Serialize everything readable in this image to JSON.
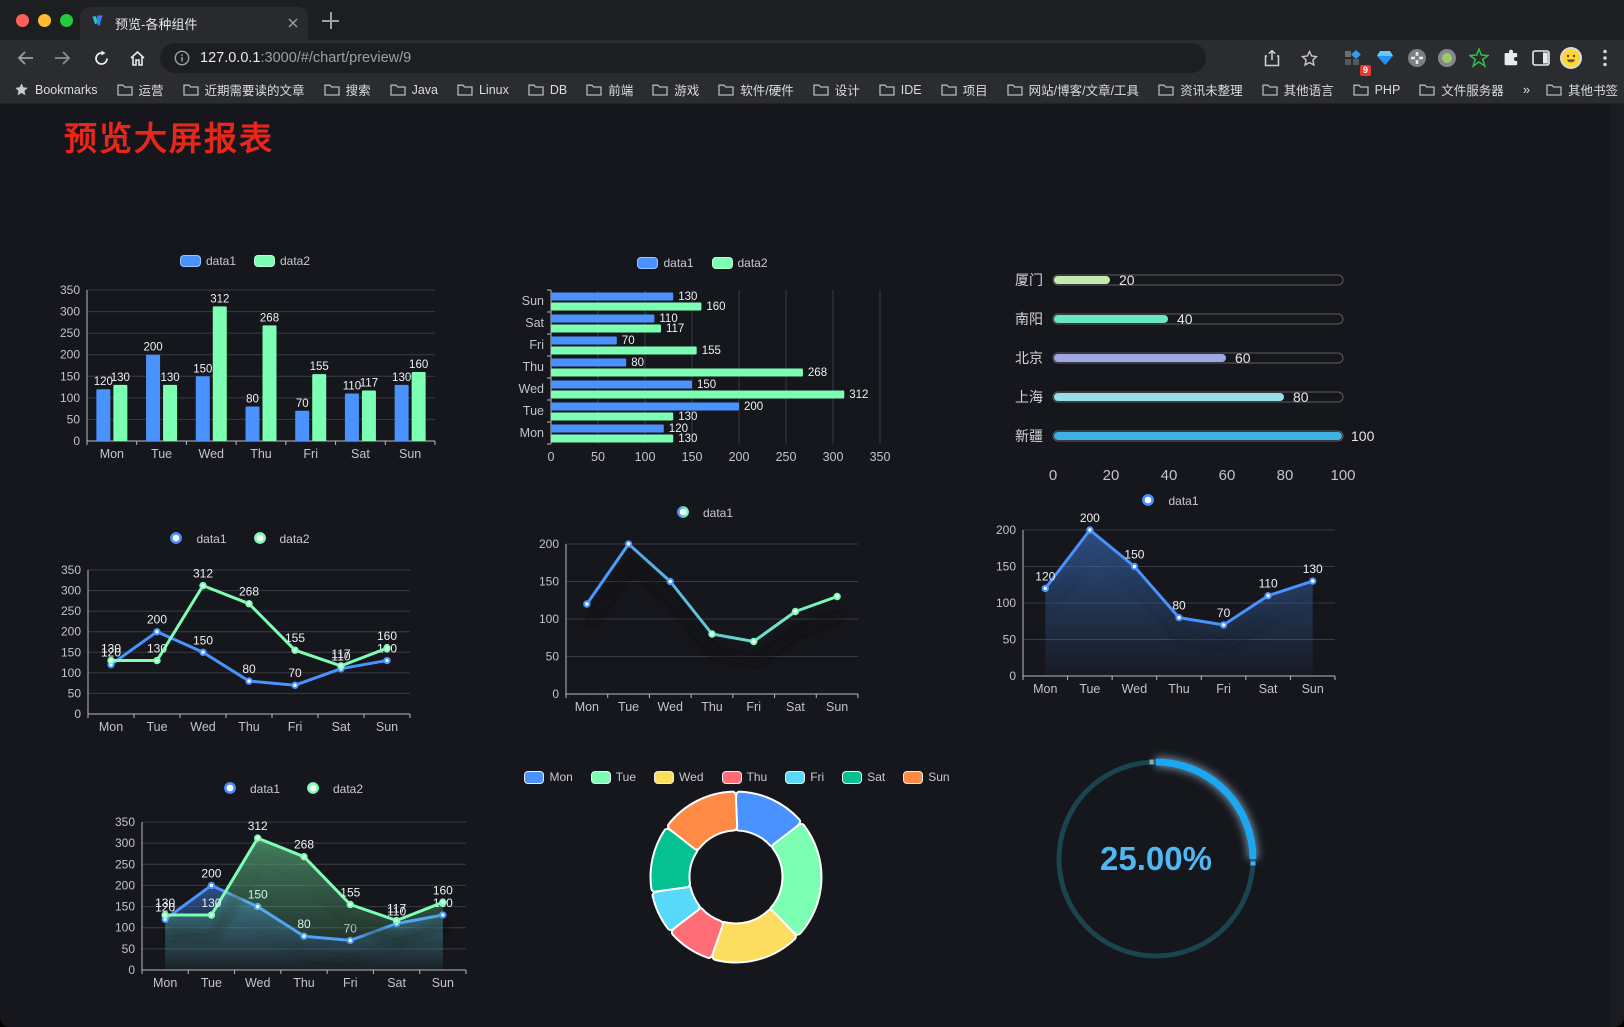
{
  "browser": {
    "tab_title": "预览-各种组件",
    "url_host": "127.0.0.1",
    "url_rest": ":3000/#/chart/preview/9",
    "bookmarks_label": "Bookmarks",
    "bookmarks": [
      "运营",
      "近期需要读的文章",
      "搜索",
      "Java",
      "Linux",
      "DB",
      "前端",
      "游戏",
      "软件/硬件",
      "设计",
      "IDE",
      "项目",
      "网站/博客/文章/工具",
      "资讯未整理",
      "其他语言",
      "PHP",
      "文件服务器"
    ],
    "bookmarks_overflow": "»",
    "other_bookmarks": "其他书签",
    "extension_badge": "9"
  },
  "page": {
    "title": "预览大屏报表",
    "title_color": "#e8261a"
  },
  "theme": {
    "axis_text": "#c2c3cb",
    "grid_line": "#3a3b45",
    "axis_line": "#b8b9c3",
    "label_text": "#eef0f4",
    "legend_text": "#c8c9d0"
  },
  "chart_data": [
    {
      "id": "bar-grouped-vertical",
      "type": "bar",
      "categories": [
        "Mon",
        "Tue",
        "Wed",
        "Thu",
        "Fri",
        "Sat",
        "Sun"
      ],
      "series": [
        {
          "name": "data1",
          "color": "#4992ff",
          "values": [
            120,
            200,
            150,
            80,
            70,
            110,
            130
          ]
        },
        {
          "name": "data2",
          "color": "#7cffb2",
          "values": [
            130,
            130,
            312,
            268,
            155,
            117,
            160
          ]
        }
      ],
      "ylim": [
        0,
        350
      ],
      "ytick_step": 50,
      "legend_position": "top",
      "grid": true,
      "labels": true
    },
    {
      "id": "bar-grouped-horizontal",
      "type": "bar",
      "orientation": "horizontal",
      "categories_top_to_bottom": [
        "Sun",
        "Sat",
        "Fri",
        "Thu",
        "Wed",
        "Tue",
        "Mon"
      ],
      "series": [
        {
          "name": "data1",
          "color": "#4992ff",
          "values_top_to_bottom": [
            130,
            110,
            70,
            80,
            150,
            200,
            120
          ]
        },
        {
          "name": "data2",
          "color": "#7cffb2",
          "values_top_to_bottom": [
            160,
            117,
            155,
            268,
            312,
            130,
            130
          ]
        }
      ],
      "xlim": [
        0,
        350
      ],
      "xtick_step": 50,
      "labels": true
    },
    {
      "id": "progress-bars",
      "type": "bar",
      "orientation": "horizontal",
      "categories": [
        "厦门",
        "南阳",
        "北京",
        "上海",
        "新疆"
      ],
      "values": [
        20,
        40,
        60,
        80,
        100
      ],
      "colors": [
        "#c4ebad",
        "#6be6c1",
        "#a0a7e6",
        "#96dee8",
        "#3fb1e3"
      ],
      "xlim": [
        0,
        100
      ],
      "xticks": [
        0,
        20,
        40,
        60,
        80,
        100
      ]
    },
    {
      "id": "line-multi",
      "type": "line",
      "categories": [
        "Mon",
        "Tue",
        "Wed",
        "Thu",
        "Fri",
        "Sat",
        "Sun"
      ],
      "series": [
        {
          "name": "data1",
          "color": "#4992ff",
          "values": [
            120,
            200,
            150,
            80,
            70,
            110,
            130
          ]
        },
        {
          "name": "data2",
          "color": "#7cffb2",
          "values": [
            130,
            130,
            312,
            268,
            155,
            117,
            160
          ]
        }
      ],
      "ylim": [
        0,
        350
      ],
      "ytick_step": 50,
      "labels": true
    },
    {
      "id": "line-gradient",
      "type": "line",
      "categories": [
        "Mon",
        "Tue",
        "Wed",
        "Thu",
        "Fri",
        "Sat",
        "Sun"
      ],
      "series": [
        {
          "name": "data1",
          "gradient": [
            "#4992ff",
            "#7cffb2"
          ],
          "values": [
            120,
            200,
            150,
            80,
            70,
            110,
            130
          ]
        }
      ],
      "ylim": [
        0,
        200
      ],
      "ytick_step": 50,
      "labels": false,
      "shadow": true
    },
    {
      "id": "area-single",
      "type": "area",
      "categories": [
        "Mon",
        "Tue",
        "Wed",
        "Thu",
        "Fri",
        "Sat",
        "Sun"
      ],
      "series": [
        {
          "name": "data1",
          "color": "#4992ff",
          "values": [
            120,
            200,
            150,
            80,
            70,
            110,
            130
          ]
        }
      ],
      "ylim": [
        0,
        200
      ],
      "ytick_step": 50,
      "labels": true,
      "shadow": true
    },
    {
      "id": "area-multi",
      "type": "area",
      "categories": [
        "Mon",
        "Tue",
        "Wed",
        "Thu",
        "Fri",
        "Sat",
        "Sun"
      ],
      "series": [
        {
          "name": "data1",
          "color": "#4992ff",
          "values": [
            120,
            200,
            150,
            80,
            70,
            110,
            130
          ]
        },
        {
          "name": "data2",
          "color": "#7cffb2",
          "values": [
            130,
            130,
            312,
            268,
            155,
            117,
            160
          ]
        }
      ],
      "ylim": [
        0,
        350
      ],
      "ytick_step": 50,
      "labels": true,
      "shadow": true
    },
    {
      "id": "donut",
      "type": "pie",
      "labels": [
        "Mon",
        "Tue",
        "Wed",
        "Thu",
        "Fri",
        "Sat",
        "Sun"
      ],
      "values": [
        120,
        200,
        150,
        80,
        70,
        110,
        130
      ],
      "colors": [
        "#4992ff",
        "#7cffb2",
        "#fddd60",
        "#ff6e76",
        "#58d9f9",
        "#05c091",
        "#ff8a45"
      ],
      "inner_radius_ratio": 0.61,
      "legend_position": "top"
    },
    {
      "id": "gauge",
      "type": "gauge",
      "value_percent": 25,
      "label": "25.00%",
      "color": "#1ca7f2",
      "track_color": "#1a454f",
      "text_color": "#4fb8f3"
    }
  ]
}
